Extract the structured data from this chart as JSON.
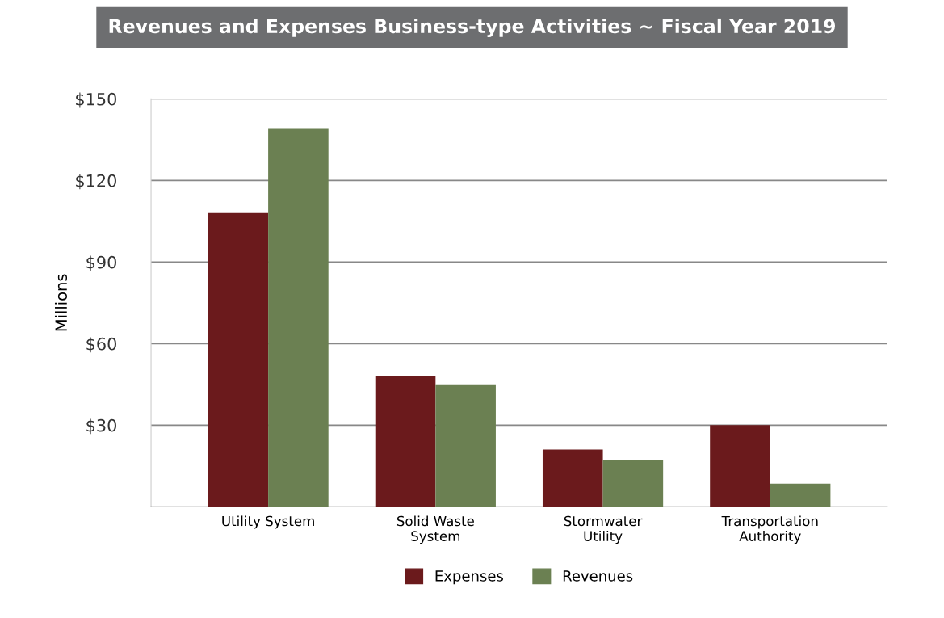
{
  "chart_data": {
    "type": "bar",
    "title": "Revenues and Expenses Business-type Activities ~ Fiscal Year 2019",
    "ylabel": "Millions",
    "categories": [
      "Utility System",
      "Solid Waste\nSystem",
      "Stormwater\nUtility",
      "Transportation\nAuthority"
    ],
    "series": [
      {
        "name": "Expenses",
        "color": "#6b1a1c",
        "values": [
          108,
          48,
          21,
          30
        ]
      },
      {
        "name": "Revenues",
        "color": "#6b8052",
        "values": [
          139,
          45,
          17,
          8.5
        ]
      }
    ],
    "ylim": [
      0,
      150
    ],
    "yticks": [
      {
        "value": 30,
        "label": "$30"
      },
      {
        "value": 60,
        "label": "$60"
      },
      {
        "value": 90,
        "label": "$90"
      },
      {
        "value": 120,
        "label": "$120"
      },
      {
        "value": 150,
        "label": "$150"
      }
    ],
    "grid": "y",
    "legend": "bottom"
  }
}
